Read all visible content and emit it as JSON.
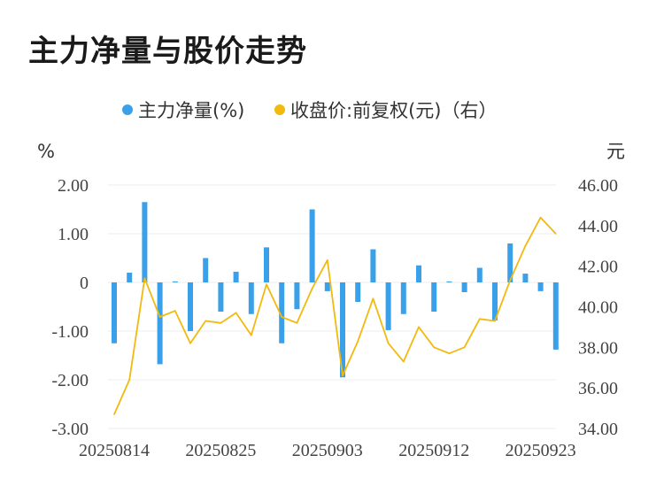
{
  "title": "主力净量与股价走势",
  "chart_data": {
    "type": "bar+line",
    "legend": [
      "主力净量(%)",
      "收盘价:前复权(元)（右）"
    ],
    "left_unit": "%",
    "right_unit": "元",
    "left_ticks": [
      "2.00",
      "1.00",
      "0",
      "-1.00",
      "-2.00",
      "-3.00"
    ],
    "right_ticks": [
      "46.00",
      "44.00",
      "42.00",
      "40.00",
      "38.00",
      "36.00",
      "34.00"
    ],
    "ylim_left": [
      -3,
      2
    ],
    "ylim_right": [
      34,
      46
    ],
    "x_tick_labels": [
      "20250814",
      "20250825",
      "20250903",
      "20250912",
      "20250923"
    ],
    "x_tick_indices": [
      0,
      7,
      14,
      21,
      28
    ],
    "colors": {
      "bar": "#3aa0ea",
      "line": "#f2b90f"
    },
    "series": [
      {
        "name": "主力净量(%)",
        "type": "bar",
        "values": [
          -1.25,
          0.2,
          1.65,
          -1.68,
          0.02,
          -1.0,
          0.5,
          -0.6,
          0.22,
          -0.65,
          0.72,
          -1.25,
          -0.55,
          1.5,
          -0.18,
          -1.95,
          -0.4,
          0.68,
          -0.98,
          -0.65,
          0.35,
          -0.6,
          0.02,
          -0.2,
          0.3,
          -0.78,
          0.8,
          0.18,
          -0.18,
          -1.38
        ]
      },
      {
        "name": "收盘价:前复权(元)（右）",
        "type": "line",
        "values": [
          34.7,
          36.4,
          41.4,
          39.5,
          39.8,
          38.2,
          39.3,
          39.2,
          39.7,
          38.6,
          41.1,
          39.5,
          39.2,
          40.9,
          42.3,
          36.6,
          38.3,
          40.4,
          38.2,
          37.3,
          39.0,
          38.0,
          37.7,
          38.0,
          39.4,
          39.3,
          41.3,
          43.0,
          44.4,
          43.6
        ]
      }
    ]
  }
}
